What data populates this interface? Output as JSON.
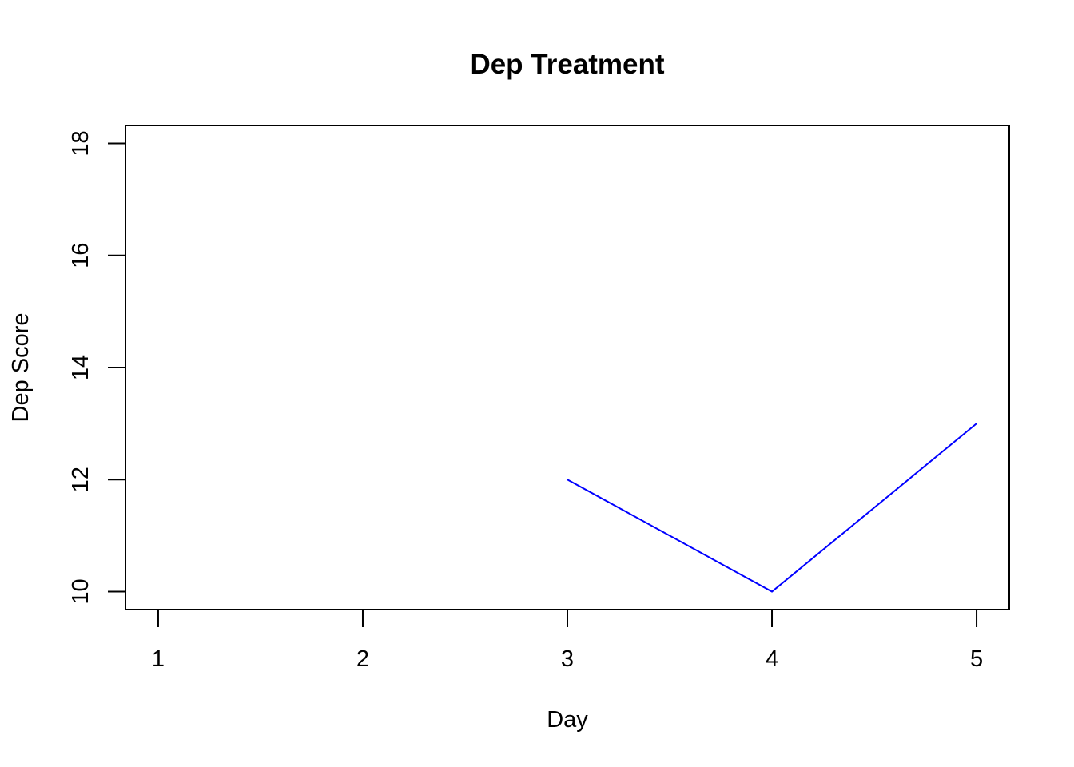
{
  "chart_data": {
    "type": "line",
    "title": "Dep Treatment",
    "xlabel": "Day",
    "ylabel": "Dep Score",
    "x": [
      1,
      2,
      3,
      4,
      5
    ],
    "xticks": [
      1,
      2,
      3,
      4,
      5
    ],
    "xlim": [
      0.84,
      5.16
    ],
    "ylim": [
      9.68,
      18.32
    ],
    "yticks": [
      10,
      12,
      14,
      16,
      18
    ],
    "series": [
      {
        "color": "#0000ff",
        "points": [
          {
            "x": 3,
            "y": 12
          },
          {
            "x": 4,
            "y": 10
          },
          {
            "x": 5,
            "y": 13
          }
        ]
      }
    ],
    "grid": false,
    "legend": "none"
  }
}
